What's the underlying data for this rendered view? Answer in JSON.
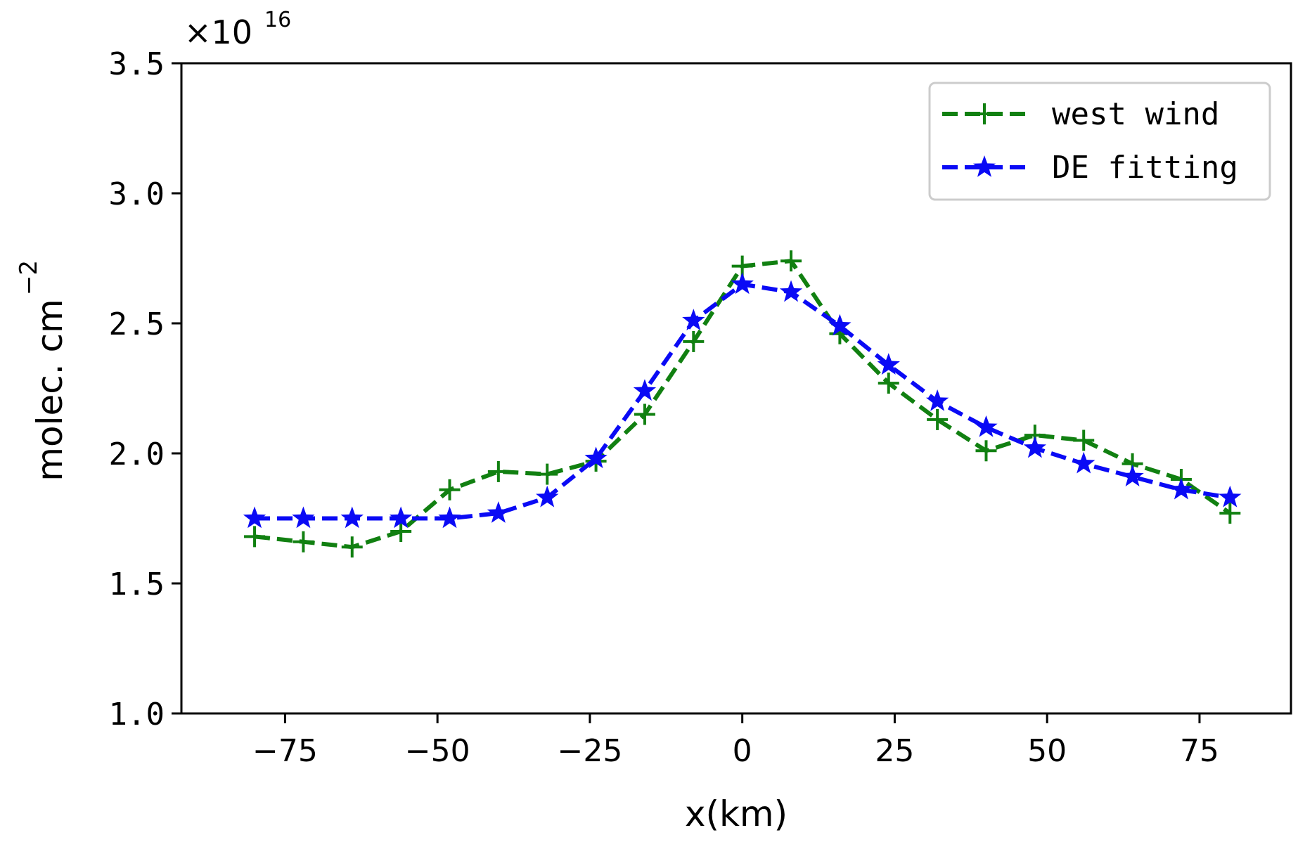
{
  "chart_data": {
    "type": "line",
    "title": "",
    "xlabel": "x(km)",
    "ylabel": "molec. cm",
    "ylabel_superscript": "−2",
    "y_scale": {
      "base": "×10",
      "exponent": "16"
    },
    "xlim": [
      -92,
      90
    ],
    "ylim": [
      1.0,
      3.5
    ],
    "x_ticks": [
      -75,
      -50,
      -25,
      0,
      25,
      50,
      75
    ],
    "x_tick_labels": [
      "−75",
      "−50",
      "−25",
      "0",
      "25",
      "50",
      "75"
    ],
    "y_ticks": [
      1.0,
      1.5,
      2.0,
      2.5,
      3.0,
      3.5
    ],
    "y_tick_labels": [
      "1.0",
      "1.5",
      "2.0",
      "2.5",
      "3.0",
      "3.5"
    ],
    "grid": false,
    "legend_position": "top-right",
    "x": [
      -80,
      -72,
      -64,
      -56,
      -48,
      -40,
      -32,
      -24,
      -16,
      -8,
      0,
      8,
      16,
      24,
      32,
      40,
      48,
      56,
      64,
      72,
      80
    ],
    "series": [
      {
        "name": "west wind",
        "color": "#118011",
        "marker": "plus",
        "linestyle": "dashed",
        "values": [
          1.68,
          1.66,
          1.64,
          1.7,
          1.86,
          1.93,
          1.92,
          1.97,
          2.15,
          2.43,
          2.72,
          2.74,
          2.46,
          2.27,
          2.13,
          2.01,
          2.07,
          2.05,
          1.96,
          1.9,
          1.77
        ]
      },
      {
        "name": "DE fitting",
        "color": "#0a0af5",
        "marker": "star",
        "linestyle": "dashed",
        "values": [
          1.75,
          1.75,
          1.75,
          1.75,
          1.75,
          1.77,
          1.83,
          1.98,
          2.24,
          2.51,
          2.65,
          2.62,
          2.49,
          2.34,
          2.2,
          2.1,
          2.02,
          1.96,
          1.91,
          1.86,
          1.83
        ]
      }
    ]
  }
}
